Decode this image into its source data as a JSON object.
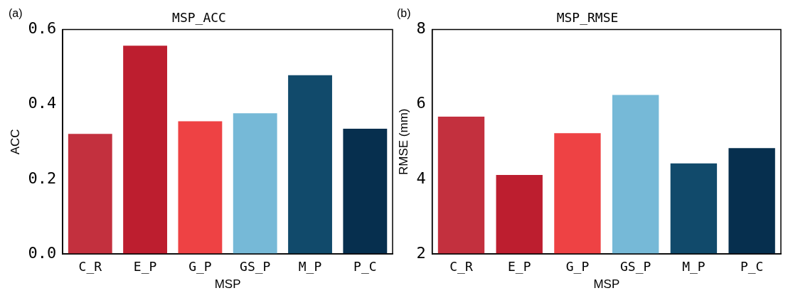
{
  "chart_data": [
    {
      "type": "bar",
      "title": "MSP_ACC",
      "xlabel": "MSP",
      "ylabel": "ACC",
      "annotations": [
        "(a)"
      ],
      "categories": [
        "C_R",
        "E_P",
        "G_P",
        "GS_P",
        "M_P",
        "P_C"
      ],
      "values": [
        0.321,
        0.557,
        0.355,
        0.376,
        0.478,
        0.335
      ],
      "colors": [
        "#c3303e",
        "#bd1e2f",
        "#ee4244",
        "#76b9d7",
        "#114a6b",
        "#062f4e"
      ],
      "ylim": [
        0,
        0.6
      ],
      "yticks": [
        {
          "value": 0,
          "label": "0.0"
        },
        0.2,
        0.4,
        0.6
      ],
      "grid": false,
      "legend": false
    },
    {
      "type": "bar",
      "title": "MSP_RMSE",
      "xlabel": "MSP",
      "ylabel": "RMSE (mm)",
      "annotations": [
        "(b)"
      ],
      "categories": [
        "C_R",
        "E_P",
        "G_P",
        "GS_P",
        "M_P",
        "P_C"
      ],
      "values": [
        5.67,
        4.11,
        5.23,
        6.25,
        4.42,
        4.83
      ],
      "colors": [
        "#c3303e",
        "#bd1e2f",
        "#ee4244",
        "#76b9d7",
        "#114a6b",
        "#062f4e"
      ],
      "ylim": [
        2,
        8
      ],
      "yticks": [
        2,
        4,
        6,
        8
      ],
      "grid": false,
      "legend": false
    }
  ]
}
